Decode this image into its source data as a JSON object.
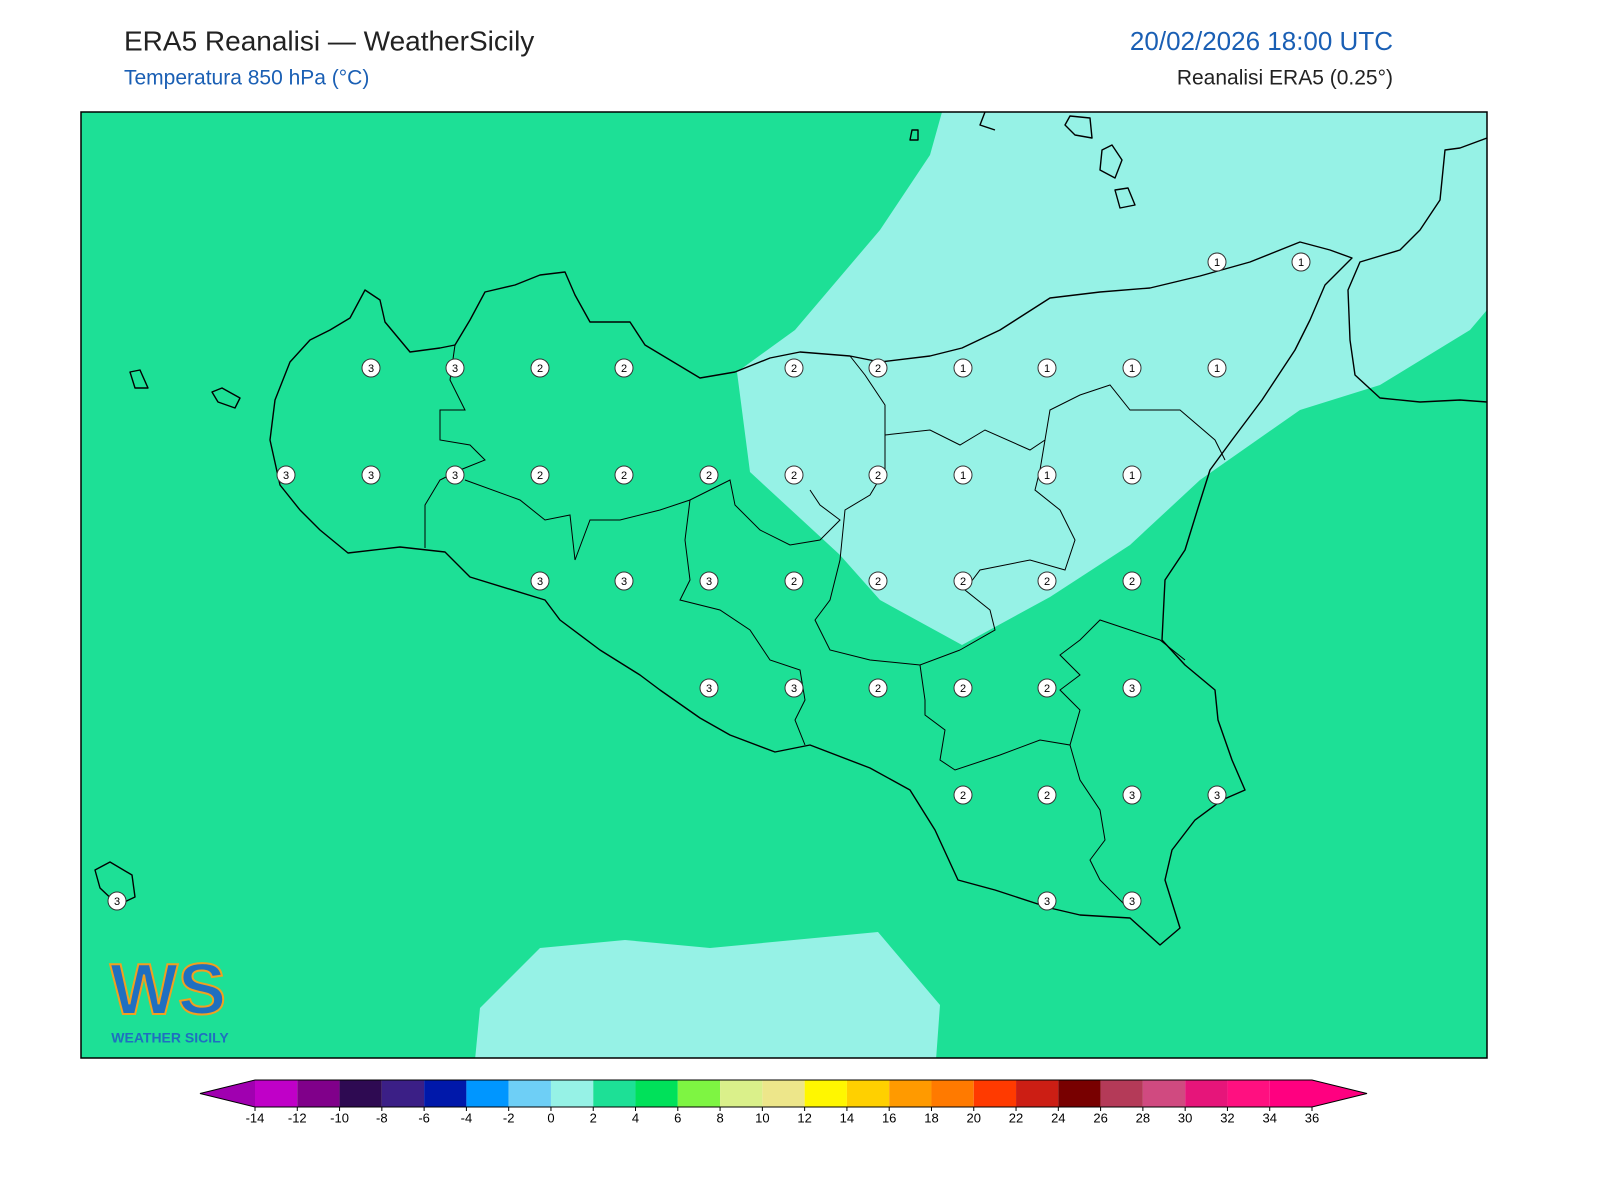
{
  "header": {
    "title": "ERA5 Reanalisi — WeatherSicily",
    "subtitle": "Temperatura 850 hPa (°C)",
    "datetime": "20/02/2026 18:00 UTC",
    "source": "Reanalisi ERA5 (0.25°)"
  },
  "logo": {
    "initials": "WS",
    "name": "WEATHER SICILY"
  },
  "grid_values": [
    1,
    1,
    3,
    3,
    2,
    2,
    2,
    2,
    1,
    1,
    1,
    1,
    3,
    3,
    3,
    2,
    2,
    2,
    2,
    2,
    1,
    1,
    1,
    3,
    3,
    3,
    2,
    2,
    2,
    2,
    2,
    3,
    3,
    2,
    2,
    2,
    3,
    2,
    2,
    3,
    3,
    3,
    3,
    3
  ],
  "colorbar": {
    "ticks": [
      -14,
      -12,
      -10,
      -8,
      -6,
      -4,
      -2,
      0,
      2,
      4,
      6,
      8,
      10,
      12,
      14,
      16,
      18,
      20,
      22,
      24,
      26,
      28,
      30,
      32,
      34,
      36
    ],
    "colors": [
      "#c000c8",
      "#80008a",
      "#2e0a52",
      "#3b1f86",
      "#0018aa",
      "#0096ff",
      "#6ecff6",
      "#96f2e6",
      "#1de096",
      "#00e15a",
      "#7ef542",
      "#daf08a",
      "#ede68a",
      "#fff700",
      "#ffd000",
      "#ff9a00",
      "#ff7a00",
      "#ff3a00",
      "#cc1e14",
      "#780000",
      "#b43a58",
      "#d04a80",
      "#e6157a",
      "#ff1080",
      "#ff0080"
    ],
    "extend_colors": [
      "#a000b0",
      "#ff0080"
    ]
  }
}
